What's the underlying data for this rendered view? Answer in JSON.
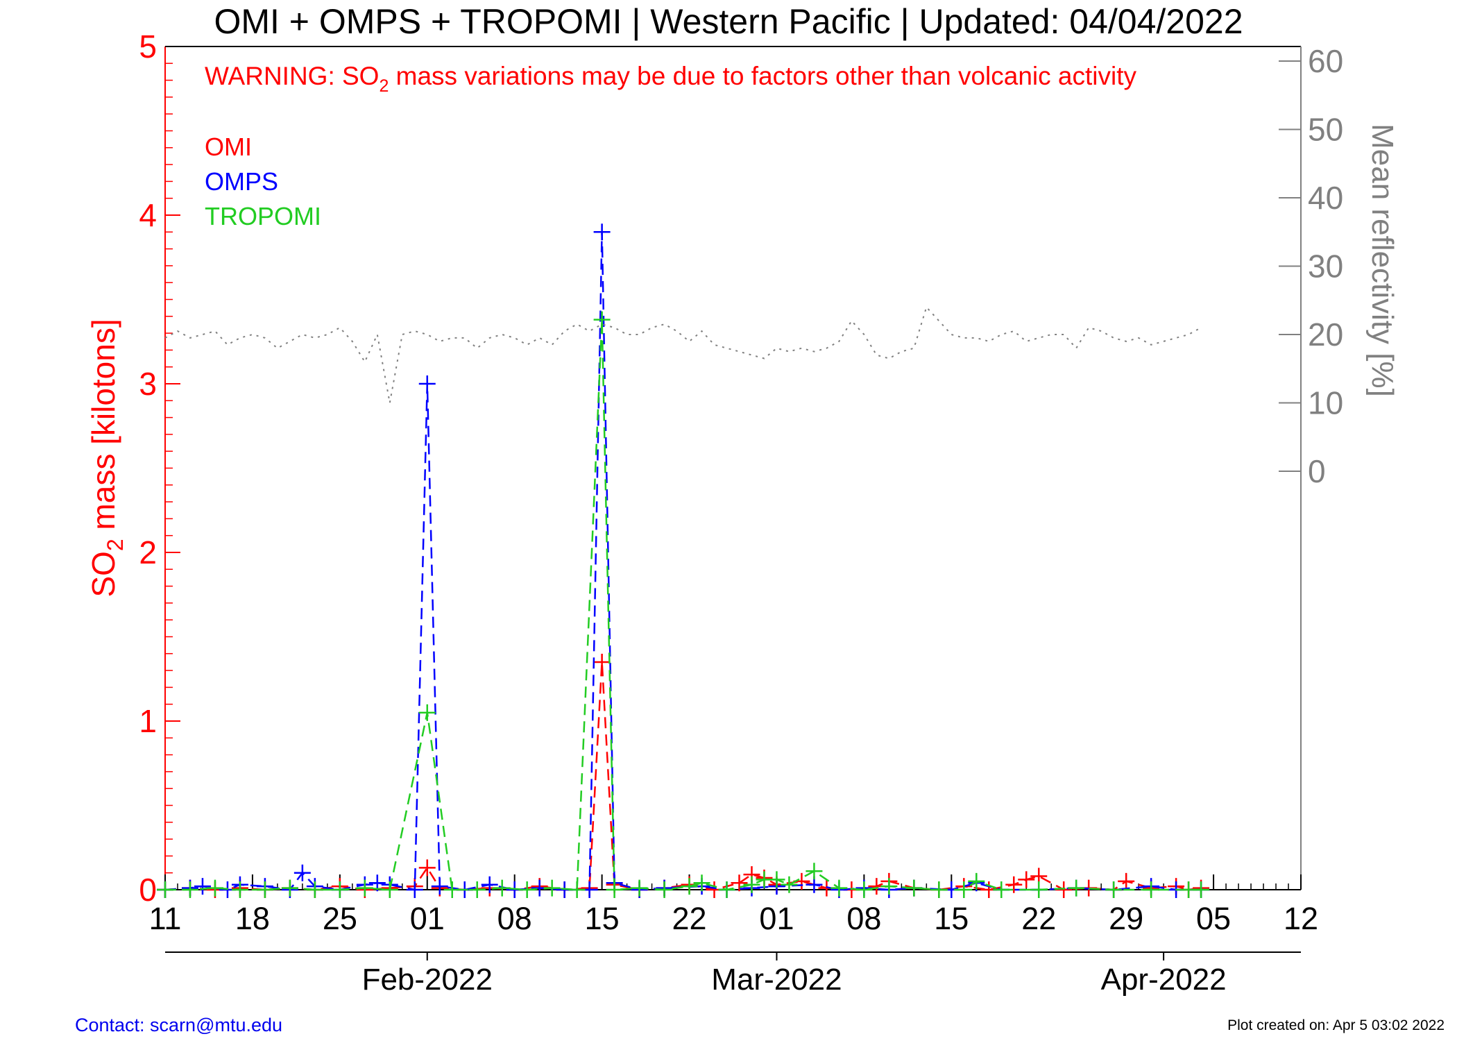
{
  "footer": {
    "contact": "Contact: scarn@mtu.edu",
    "created": "Plot created on: Apr  5 03:02 2022"
  },
  "chart_data": {
    "type": "line",
    "title": "OMI + OMPS + TROPOMI | Western Pacific | Updated: 04/04/2022",
    "warning": {
      "prefix": "WARNING: SO",
      "subscript": "2",
      "suffix": " mass variations may be due to factors other than volcanic activity"
    },
    "ylabel_left": {
      "prefix": "SO",
      "subscript": "2",
      "suffix": " mass [kilotons]"
    },
    "ylabel_right": "Mean reflectivity [%]",
    "x_range": [
      "2022-01-11",
      "2022-04-12"
    ],
    "ylim_left": [
      0,
      5
    ],
    "ylim_right_ticks": [
      0,
      10,
      20,
      30,
      40,
      50,
      60
    ],
    "x_day_ticks": [
      {
        "date": "2022-01-11",
        "label": "11"
      },
      {
        "date": "2022-01-18",
        "label": "18"
      },
      {
        "date": "2022-01-25",
        "label": "25"
      },
      {
        "date": "2022-02-01",
        "label": "01"
      },
      {
        "date": "2022-02-08",
        "label": "08"
      },
      {
        "date": "2022-02-15",
        "label": "15"
      },
      {
        "date": "2022-02-22",
        "label": "22"
      },
      {
        "date": "2022-03-01",
        "label": "01"
      },
      {
        "date": "2022-03-08",
        "label": "08"
      },
      {
        "date": "2022-03-15",
        "label": "15"
      },
      {
        "date": "2022-03-22",
        "label": "22"
      },
      {
        "date": "2022-03-29",
        "label": "29"
      },
      {
        "date": "2022-04-05",
        "label": "05"
      },
      {
        "date": "2022-04-12",
        "label": "12"
      }
    ],
    "x_month_ticks": [
      {
        "date": "2022-02-01",
        "label": "Feb-2022"
      },
      {
        "date": "2022-03-01",
        "label": "Mar-2022"
      },
      {
        "date": "2022-04-01",
        "label": "Apr-2022"
      }
    ],
    "y_left_ticks": [
      {
        "v": 0,
        "label": "0"
      },
      {
        "v": 1,
        "label": "1"
      },
      {
        "v": 2,
        "label": "2"
      },
      {
        "v": 3,
        "label": "3"
      },
      {
        "v": 4,
        "label": "4"
      },
      {
        "v": 5,
        "label": "5"
      }
    ],
    "legend": [
      "OMI",
      "OMPS",
      "TROPOMI"
    ],
    "grid": false,
    "colors": {
      "OMI": "#ff0000",
      "OMPS": "#0000ff",
      "TROPOMI": "#22cc22",
      "reflectivity": "#808080",
      "left_axis": "#ff0000",
      "right_axis": "#808080"
    },
    "series": [
      {
        "name": "OMI",
        "color": "#ff0000",
        "points": [
          [
            "2022-01-11",
            0.0
          ],
          [
            "2022-01-13",
            0.01
          ],
          [
            "2022-01-15",
            0.0
          ],
          [
            "2022-01-17",
            0.01
          ],
          [
            "2022-01-19",
            0.0
          ],
          [
            "2022-01-21",
            0.01
          ],
          [
            "2022-01-23",
            0.0
          ],
          [
            "2022-01-25",
            0.02
          ],
          [
            "2022-01-27",
            0.0
          ],
          [
            "2022-01-29",
            0.01
          ],
          [
            "2022-01-31",
            0.02
          ],
          [
            "2022-02-01",
            0.13
          ],
          [
            "2022-02-02",
            0.01
          ],
          [
            "2022-02-04",
            0.0
          ],
          [
            "2022-02-06",
            0.01
          ],
          [
            "2022-02-08",
            0.0
          ],
          [
            "2022-02-10",
            0.02
          ],
          [
            "2022-02-12",
            0.0
          ],
          [
            "2022-02-14",
            0.01
          ],
          [
            "2022-02-15",
            1.35
          ],
          [
            "2022-02-16",
            0.03
          ],
          [
            "2022-02-18",
            0.0
          ],
          [
            "2022-02-20",
            0.01
          ],
          [
            "2022-02-22",
            0.03
          ],
          [
            "2022-02-24",
            0.0
          ],
          [
            "2022-02-26",
            0.04
          ],
          [
            "2022-02-27",
            0.09
          ],
          [
            "2022-02-28",
            0.07
          ],
          [
            "2022-03-01",
            0.03
          ],
          [
            "2022-03-03",
            0.05
          ],
          [
            "2022-03-05",
            0.01
          ],
          [
            "2022-03-07",
            0.0
          ],
          [
            "2022-03-09",
            0.02
          ],
          [
            "2022-03-10",
            0.05
          ],
          [
            "2022-03-12",
            0.01
          ],
          [
            "2022-03-14",
            0.0
          ],
          [
            "2022-03-16",
            0.02
          ],
          [
            "2022-03-18",
            0.0
          ],
          [
            "2022-03-20",
            0.03
          ],
          [
            "2022-03-21",
            0.06
          ],
          [
            "2022-03-22",
            0.08
          ],
          [
            "2022-03-24",
            0.0
          ],
          [
            "2022-03-26",
            0.01
          ],
          [
            "2022-03-28",
            0.0
          ],
          [
            "2022-03-29",
            0.05
          ],
          [
            "2022-03-31",
            0.01
          ],
          [
            "2022-04-02",
            0.02
          ],
          [
            "2022-04-03",
            0.0
          ],
          [
            "2022-04-04",
            0.01
          ]
        ]
      },
      {
        "name": "OMPS",
        "color": "#0000ff",
        "points": [
          [
            "2022-01-11",
            0.0
          ],
          [
            "2022-01-13",
            0.01
          ],
          [
            "2022-01-14",
            0.02
          ],
          [
            "2022-01-16",
            0.0
          ],
          [
            "2022-01-17",
            0.03
          ],
          [
            "2022-01-19",
            0.02
          ],
          [
            "2022-01-21",
            0.0
          ],
          [
            "2022-01-22",
            0.1
          ],
          [
            "2022-01-23",
            0.02
          ],
          [
            "2022-01-25",
            0.0
          ],
          [
            "2022-01-27",
            0.03
          ],
          [
            "2022-01-28",
            0.04
          ],
          [
            "2022-01-29",
            0.03
          ],
          [
            "2022-01-31",
            0.0
          ],
          [
            "2022-02-01",
            3.0
          ],
          [
            "2022-02-02",
            0.02
          ],
          [
            "2022-02-04",
            0.0
          ],
          [
            "2022-02-06",
            0.03
          ],
          [
            "2022-02-08",
            0.0
          ],
          [
            "2022-02-10",
            0.01
          ],
          [
            "2022-02-12",
            0.0
          ],
          [
            "2022-02-14",
            0.0
          ],
          [
            "2022-02-15",
            3.9
          ],
          [
            "2022-02-16",
            0.04
          ],
          [
            "2022-02-18",
            0.0
          ],
          [
            "2022-02-20",
            0.01
          ],
          [
            "2022-02-23",
            0.02
          ],
          [
            "2022-02-25",
            0.0
          ],
          [
            "2022-02-27",
            0.01
          ],
          [
            "2022-03-01",
            0.02
          ],
          [
            "2022-03-04",
            0.03
          ],
          [
            "2022-03-06",
            0.0
          ],
          [
            "2022-03-08",
            0.01
          ],
          [
            "2022-03-10",
            0.0
          ],
          [
            "2022-03-12",
            0.01
          ],
          [
            "2022-03-15",
            0.0
          ],
          [
            "2022-03-17",
            0.04
          ],
          [
            "2022-03-19",
            0.0
          ],
          [
            "2022-03-22",
            0.0
          ],
          [
            "2022-03-25",
            0.01
          ],
          [
            "2022-03-28",
            0.0
          ],
          [
            "2022-03-31",
            0.02
          ],
          [
            "2022-04-02",
            0.0
          ],
          [
            "2022-04-04",
            0.0
          ]
        ]
      },
      {
        "name": "TROPOMI",
        "color": "#22cc22",
        "points": [
          [
            "2022-01-11",
            0.0
          ],
          [
            "2022-01-13",
            0.0
          ],
          [
            "2022-01-15",
            0.01
          ],
          [
            "2022-01-17",
            0.0
          ],
          [
            "2022-01-19",
            0.0
          ],
          [
            "2022-01-21",
            0.01
          ],
          [
            "2022-01-23",
            0.0
          ],
          [
            "2022-01-25",
            0.0
          ],
          [
            "2022-01-27",
            0.01
          ],
          [
            "2022-01-29",
            0.0
          ],
          [
            "2022-02-01",
            1.05
          ],
          [
            "2022-02-03",
            0.0
          ],
          [
            "2022-02-05",
            0.0
          ],
          [
            "2022-02-07",
            0.01
          ],
          [
            "2022-02-09",
            0.0
          ],
          [
            "2022-02-11",
            0.01
          ],
          [
            "2022-02-13",
            0.0
          ],
          [
            "2022-02-15",
            3.38
          ],
          [
            "2022-02-16",
            0.0
          ],
          [
            "2022-02-18",
            0.01
          ],
          [
            "2022-02-20",
            0.0
          ],
          [
            "2022-02-22",
            0.02
          ],
          [
            "2022-02-23",
            0.04
          ],
          [
            "2022-02-25",
            0.0
          ],
          [
            "2022-02-27",
            0.03
          ],
          [
            "2022-02-28",
            0.06
          ],
          [
            "2022-03-01",
            0.06
          ],
          [
            "2022-03-02",
            0.03
          ],
          [
            "2022-03-04",
            0.11
          ],
          [
            "2022-03-06",
            0.01
          ],
          [
            "2022-03-08",
            0.0
          ],
          [
            "2022-03-10",
            0.02
          ],
          [
            "2022-03-12",
            0.01
          ],
          [
            "2022-03-14",
            0.0
          ],
          [
            "2022-03-16",
            0.0
          ],
          [
            "2022-03-17",
            0.05
          ],
          [
            "2022-03-19",
            0.0
          ],
          [
            "2022-03-22",
            0.0
          ],
          [
            "2022-03-25",
            0.01
          ],
          [
            "2022-03-28",
            0.0
          ],
          [
            "2022-03-31",
            0.0
          ],
          [
            "2022-04-03",
            0.0
          ],
          [
            "2022-04-04",
            0.0
          ]
        ]
      },
      {
        "name": "Mean reflectivity",
        "axis": "right",
        "color": "#808080",
        "points": [
          [
            "2022-01-11",
            19.5
          ],
          [
            "2022-01-12",
            20.5
          ],
          [
            "2022-01-13",
            19.5
          ],
          [
            "2022-01-14",
            20.0
          ],
          [
            "2022-01-15",
            20.5
          ],
          [
            "2022-01-16",
            18.5
          ],
          [
            "2022-01-17",
            19.5
          ],
          [
            "2022-01-18",
            20.0
          ],
          [
            "2022-01-19",
            19.5
          ],
          [
            "2022-01-20",
            18.0
          ],
          [
            "2022-01-21",
            19.0
          ],
          [
            "2022-01-22",
            20.0
          ],
          [
            "2022-01-23",
            19.5
          ],
          [
            "2022-01-24",
            20.0
          ],
          [
            "2022-01-25",
            21.0
          ],
          [
            "2022-01-26",
            19.0
          ],
          [
            "2022-01-27",
            16.0
          ],
          [
            "2022-01-28",
            20.0
          ],
          [
            "2022-01-29",
            10.0
          ],
          [
            "2022-01-30",
            20.0
          ],
          [
            "2022-01-31",
            20.5
          ],
          [
            "2022-02-01",
            20.0
          ],
          [
            "2022-02-02",
            19.0
          ],
          [
            "2022-02-03",
            19.5
          ],
          [
            "2022-02-04",
            19.5
          ],
          [
            "2022-02-05",
            18.0
          ],
          [
            "2022-02-06",
            19.5
          ],
          [
            "2022-02-07",
            20.0
          ],
          [
            "2022-02-08",
            19.5
          ],
          [
            "2022-02-09",
            18.5
          ],
          [
            "2022-02-10",
            19.5
          ],
          [
            "2022-02-11",
            18.5
          ],
          [
            "2022-02-12",
            20.5
          ],
          [
            "2022-02-13",
            21.5
          ],
          [
            "2022-02-14",
            20.5
          ],
          [
            "2022-02-15",
            21.5
          ],
          [
            "2022-02-16",
            21.0
          ],
          [
            "2022-02-17",
            20.0
          ],
          [
            "2022-02-18",
            20.0
          ],
          [
            "2022-02-19",
            21.0
          ],
          [
            "2022-02-20",
            21.5
          ],
          [
            "2022-02-21",
            20.5
          ],
          [
            "2022-02-22",
            19.0
          ],
          [
            "2022-02-23",
            20.5
          ],
          [
            "2022-02-24",
            18.5
          ],
          [
            "2022-02-25",
            18.0
          ],
          [
            "2022-02-26",
            17.5
          ],
          [
            "2022-02-27",
            17.0
          ],
          [
            "2022-02-28",
            16.5
          ],
          [
            "2022-03-01",
            18.0
          ],
          [
            "2022-03-02",
            17.5
          ],
          [
            "2022-03-03",
            18.0
          ],
          [
            "2022-03-04",
            17.5
          ],
          [
            "2022-03-05",
            18.0
          ],
          [
            "2022-03-06",
            19.0
          ],
          [
            "2022-03-07",
            22.0
          ],
          [
            "2022-03-08",
            20.0
          ],
          [
            "2022-03-09",
            17.0
          ],
          [
            "2022-03-10",
            16.5
          ],
          [
            "2022-03-11",
            17.5
          ],
          [
            "2022-03-12",
            18.0
          ],
          [
            "2022-03-13",
            24.0
          ],
          [
            "2022-03-14",
            22.0
          ],
          [
            "2022-03-15",
            20.0
          ],
          [
            "2022-03-16",
            19.5
          ],
          [
            "2022-03-17",
            19.5
          ],
          [
            "2022-03-18",
            19.0
          ],
          [
            "2022-03-19",
            20.0
          ],
          [
            "2022-03-20",
            20.5
          ],
          [
            "2022-03-21",
            19.0
          ],
          [
            "2022-03-22",
            19.5
          ],
          [
            "2022-03-23",
            20.0
          ],
          [
            "2022-03-24",
            20.0
          ],
          [
            "2022-03-25",
            18.0
          ],
          [
            "2022-03-26",
            21.0
          ],
          [
            "2022-03-27",
            20.5
          ],
          [
            "2022-03-28",
            19.5
          ],
          [
            "2022-03-29",
            19.0
          ],
          [
            "2022-03-30",
            19.5
          ],
          [
            "2022-03-31",
            18.5
          ],
          [
            "2022-04-01",
            19.0
          ],
          [
            "2022-04-02",
            19.5
          ],
          [
            "2022-04-03",
            20.0
          ],
          [
            "2022-04-04",
            21.0
          ]
        ]
      }
    ]
  }
}
